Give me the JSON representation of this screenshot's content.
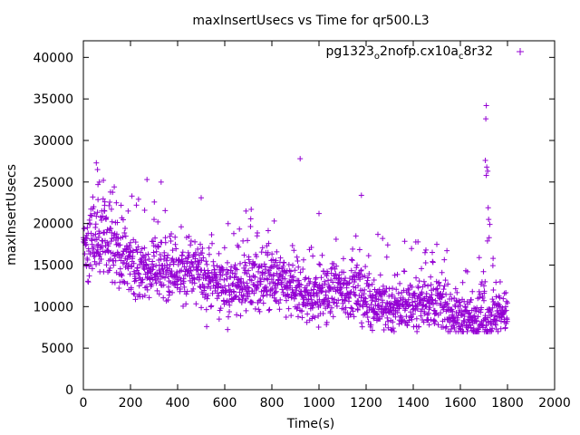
{
  "chart_data": {
    "type": "scatter",
    "title": "maxInsertUsecs vs Time for qr500.L3",
    "xlabel": "Time(s)",
    "ylabel": "maxInsertUsecs",
    "xlim": [
      0,
      2000
    ],
    "ylim": [
      0,
      42000
    ],
    "xticks": [
      0,
      200,
      400,
      600,
      800,
      1000,
      1200,
      1400,
      1600,
      1800,
      2000
    ],
    "yticks": [
      0,
      5000,
      10000,
      15000,
      20000,
      25000,
      30000,
      35000,
      40000
    ],
    "xtick_labels": [
      "0",
      "200",
      "400",
      "600",
      "800",
      "1000",
      "1200",
      "1400",
      "1600",
      "1800",
      "2000"
    ],
    "ytick_labels": [
      "0",
      "5000",
      "10000",
      "15000",
      "20000",
      "25000",
      "30000",
      "35000",
      "40000"
    ],
    "grid": false,
    "legend_position": "top-right",
    "marker": "+",
    "series": [
      {
        "name": "pg1323_o2nofp.cx10a_c8r32",
        "legend_parts": [
          "pg1323",
          "o",
          "2nofp.cx10a",
          "c",
          "8r32"
        ],
        "color": "#9400d3",
        "point_count": 1800,
        "x_range": [
          0,
          1800
        ],
        "trend": [
          {
            "t": 0,
            "mid": 18000,
            "spread": 2200
          },
          {
            "t": 100,
            "mid": 17000,
            "spread": 2100
          },
          {
            "t": 200,
            "mid": 15500,
            "spread": 2000
          },
          {
            "t": 400,
            "mid": 14000,
            "spread": 1900
          },
          {
            "t": 600,
            "mid": 13200,
            "spread": 1800
          },
          {
            "t": 800,
            "mid": 12500,
            "spread": 1800
          },
          {
            "t": 1000,
            "mid": 11800,
            "spread": 1700
          },
          {
            "t": 1200,
            "mid": 11000,
            "spread": 1600
          },
          {
            "t": 1400,
            "mid": 10200,
            "spread": 1500
          },
          {
            "t": 1600,
            "mid": 9300,
            "spread": 1300
          },
          {
            "t": 1800,
            "mid": 8600,
            "spread": 1200
          }
        ],
        "outliers": [
          {
            "x": 55,
            "y": 27300
          },
          {
            "x": 60,
            "y": 26500
          },
          {
            "x": 62,
            "y": 24700
          },
          {
            "x": 85,
            "y": 25200
          },
          {
            "x": 68,
            "y": 25000
          },
          {
            "x": 40,
            "y": 23200
          },
          {
            "x": 115,
            "y": 23800
          },
          {
            "x": 140,
            "y": 22500
          },
          {
            "x": 160,
            "y": 22200
          },
          {
            "x": 190,
            "y": 21500
          },
          {
            "x": 30,
            "y": 21000
          },
          {
            "x": 90,
            "y": 21500
          },
          {
            "x": 270,
            "y": 25300
          },
          {
            "x": 330,
            "y": 25000
          },
          {
            "x": 500,
            "y": 23100
          },
          {
            "x": 690,
            "y": 21500
          },
          {
            "x": 920,
            "y": 27800
          },
          {
            "x": 1000,
            "y": 21200
          },
          {
            "x": 1180,
            "y": 23400
          },
          {
            "x": 260,
            "y": 21600
          },
          {
            "x": 300,
            "y": 20500
          },
          {
            "x": 810,
            "y": 20300
          },
          {
            "x": 1250,
            "y": 18700
          },
          {
            "x": 1270,
            "y": 18200
          },
          {
            "x": 1420,
            "y": 17800
          },
          {
            "x": 1500,
            "y": 17500
          },
          {
            "x": 1450,
            "y": 16500
          },
          {
            "x": 1680,
            "y": 15900
          },
          {
            "x": 1700,
            "y": 12500
          },
          {
            "x": 1705,
            "y": 13000
          },
          {
            "x": 1710,
            "y": 34200
          },
          {
            "x": 1708,
            "y": 32600
          },
          {
            "x": 1706,
            "y": 27600
          },
          {
            "x": 1712,
            "y": 26800
          },
          {
            "x": 1716,
            "y": 26300
          },
          {
            "x": 1710,
            "y": 25800
          },
          {
            "x": 1718,
            "y": 21900
          },
          {
            "x": 1720,
            "y": 20500
          },
          {
            "x": 1722,
            "y": 18300
          },
          {
            "x": 1715,
            "y": 17900
          },
          {
            "x": 1725,
            "y": 19900
          },
          {
            "x": 1740,
            "y": 12000
          },
          {
            "x": 1752,
            "y": 11200
          },
          {
            "x": 1630,
            "y": 14200
          },
          {
            "x": 1610,
            "y": 12900
          }
        ]
      }
    ]
  }
}
